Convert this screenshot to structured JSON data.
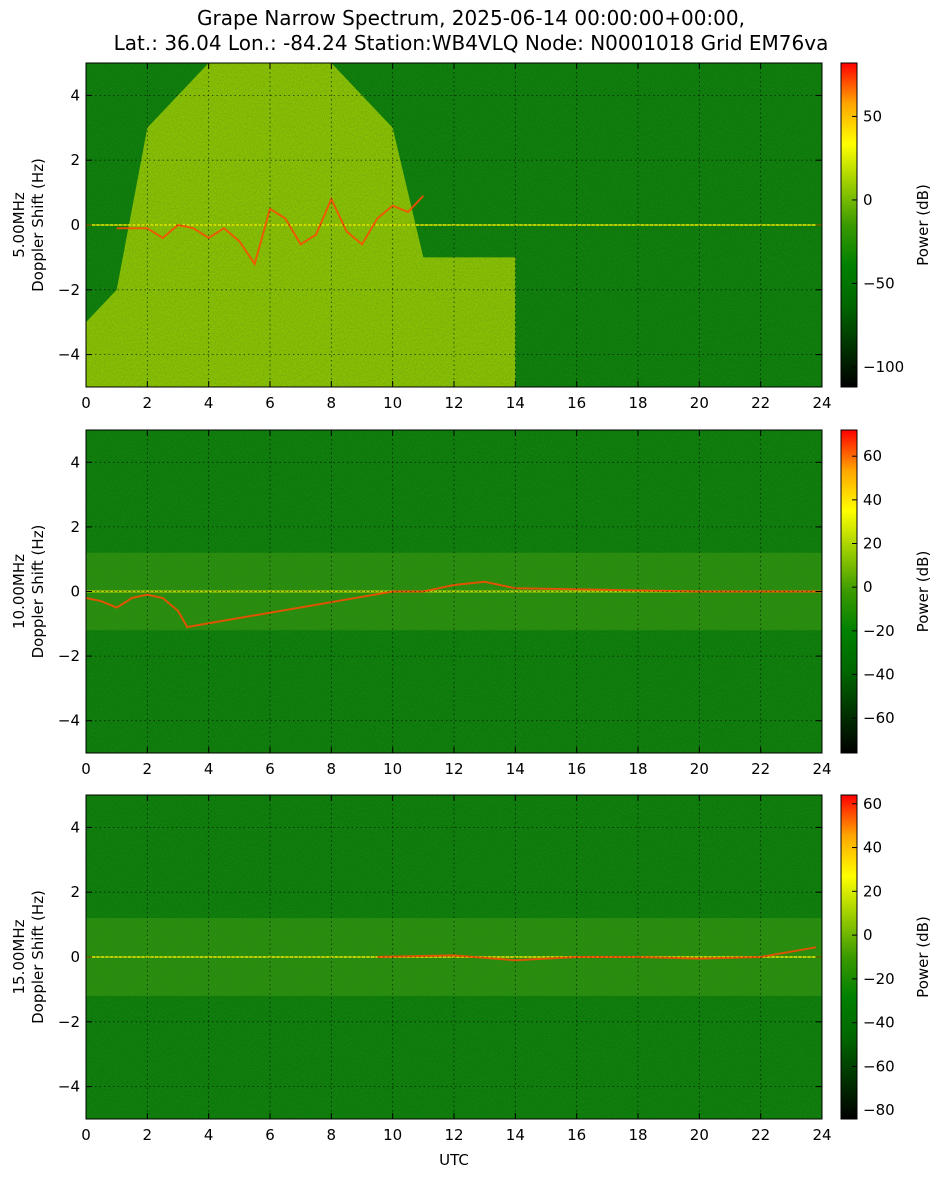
{
  "title_line1": "Grape Narrow Spectrum, 2025-06-14 00:00:00+00:00,",
  "title_line2": "Lat.: 36.04 Lon.: -84.24 Station:WB4VLQ Node: N0001018 Grid EM76va",
  "chart_data": [
    {
      "type": "heatmap",
      "panel": "5MHz",
      "ylabel_line1": "5.00MHz",
      "ylabel_line2": "Doppler Shift (Hz)",
      "xlabel": "",
      "xlim": [
        0,
        24
      ],
      "ylim": [
        -5,
        5
      ],
      "x_ticks": [
        "0",
        "2",
        "4",
        "6",
        "8",
        "10",
        "12",
        "14",
        "16",
        "18",
        "20",
        "22",
        "24"
      ],
      "y_ticks": [
        "4",
        "2",
        "0",
        "−2",
        "−4"
      ],
      "grid": true,
      "colorbar": {
        "label": "Power (dB)",
        "min": -112,
        "max": 82,
        "ticks": [
          "50",
          "0",
          "−50",
          "−100"
        ]
      },
      "features": {
        "noise_band": [
          [
            0,
            -3
          ],
          [
            1,
            -2
          ],
          [
            2,
            3
          ],
          [
            4,
            5
          ],
          [
            6,
            5
          ],
          [
            8,
            5
          ],
          [
            10,
            3
          ],
          [
            11,
            -1
          ],
          [
            12,
            -1
          ],
          [
            13,
            -1
          ],
          [
            14,
            -1
          ]
        ],
        "carrier_trace": [
          [
            1,
            -0.1
          ],
          [
            2,
            -0.1
          ],
          [
            2.5,
            -0.4
          ],
          [
            3,
            0
          ],
          [
            3.5,
            -0.1
          ],
          [
            4,
            -0.4
          ],
          [
            4.5,
            -0.1
          ],
          [
            5,
            -0.5
          ],
          [
            5.5,
            -1.2
          ],
          [
            6,
            0.5
          ],
          [
            6.5,
            0.2
          ],
          [
            7,
            -0.6
          ],
          [
            7.5,
            -0.3
          ],
          [
            8,
            0.8
          ],
          [
            8.5,
            -0.2
          ],
          [
            9,
            -0.6
          ],
          [
            9.5,
            0.2
          ],
          [
            10,
            0.6
          ],
          [
            10.5,
            0.4
          ],
          [
            11,
            0.9
          ]
        ],
        "quiet_after_hour": 13.5
      }
    },
    {
      "type": "heatmap",
      "panel": "10MHz",
      "ylabel_line1": "10.00MHz",
      "ylabel_line2": "Doppler Shift (Hz)",
      "xlabel": "",
      "xlim": [
        0,
        24
      ],
      "ylim": [
        -5,
        5
      ],
      "x_ticks": [
        "0",
        "2",
        "4",
        "6",
        "8",
        "10",
        "12",
        "14",
        "16",
        "18",
        "20",
        "22",
        "24"
      ],
      "y_ticks": [
        "4",
        "2",
        "0",
        "−2",
        "−4"
      ],
      "grid": true,
      "colorbar": {
        "label": "Power (dB)",
        "min": -76,
        "max": 72,
        "ticks": [
          "60",
          "40",
          "20",
          "0",
          "−20",
          "−40",
          "−60"
        ]
      },
      "features": {
        "carrier_trace": [
          [
            0,
            -0.2
          ],
          [
            0.5,
            -0.3
          ],
          [
            1,
            -0.5
          ],
          [
            1.5,
            -0.2
          ],
          [
            2,
            -0.1
          ],
          [
            2.5,
            -0.2
          ],
          [
            3,
            -0.6
          ],
          [
            3.3,
            -1.1
          ],
          [
            10,
            0
          ],
          [
            11,
            0
          ],
          [
            12,
            0.2
          ],
          [
            13,
            0.3
          ],
          [
            14,
            0.1
          ],
          [
            20,
            0
          ],
          [
            22,
            0
          ],
          [
            24,
            0
          ]
        ]
      }
    },
    {
      "type": "heatmap",
      "panel": "15MHz",
      "ylabel_line1": "15.00MHz",
      "ylabel_line2": "Doppler Shift (Hz)",
      "xlabel": "UTC",
      "xlim": [
        0,
        24
      ],
      "ylim": [
        -5,
        5
      ],
      "x_ticks": [
        "0",
        "2",
        "4",
        "6",
        "8",
        "10",
        "12",
        "14",
        "16",
        "18",
        "20",
        "22",
        "24"
      ],
      "y_ticks": [
        "4",
        "2",
        "0",
        "−2",
        "−4"
      ],
      "grid": true,
      "colorbar": {
        "label": "Power (dB)",
        "min": -84,
        "max": 64,
        "ticks": [
          "60",
          "40",
          "20",
          "0",
          "−20",
          "−40",
          "−60",
          "−80"
        ]
      },
      "features": {
        "carrier_trace": [
          [
            9.5,
            0
          ],
          [
            12,
            0.05
          ],
          [
            14,
            -0.1
          ],
          [
            16,
            0
          ],
          [
            18,
            0
          ],
          [
            20,
            -0.05
          ],
          [
            22,
            0
          ],
          [
            23.8,
            0.3
          ]
        ]
      }
    }
  ],
  "colors": {
    "colormap": [
      "#000000",
      "#003300",
      "#006600",
      "#008000",
      "#3a9a00",
      "#9acd00",
      "#ffff00",
      "#ffa500",
      "#ff0000"
    ],
    "background_green": "#0a7a0a",
    "grid": "#000000"
  }
}
